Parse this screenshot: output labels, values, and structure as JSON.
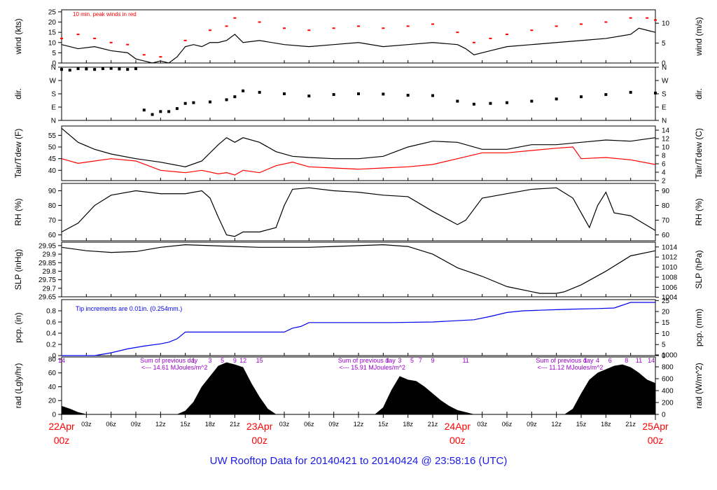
{
  "footer": {
    "title": "UW Rooftop Data for 20140421  to  20140424 @ 23:58:16  (UTC)"
  },
  "colors": {
    "axis": "#000000",
    "red": "#ff0000",
    "blue": "#0000ee",
    "purple": "#9900cc",
    "date_red": "#ff0000"
  },
  "x_axis": {
    "range_hours": [
      0,
      72
    ],
    "ticks": [
      {
        "h": 3,
        "label": "03z"
      },
      {
        "h": 6,
        "label": "06z"
      },
      {
        "h": 9,
        "label": "09z"
      },
      {
        "h": 12,
        "label": "12z"
      },
      {
        "h": 15,
        "label": "15z"
      },
      {
        "h": 18,
        "label": "18z"
      },
      {
        "h": 21,
        "label": "21z"
      },
      {
        "h": 27,
        "label": "03z"
      },
      {
        "h": 30,
        "label": "06z"
      },
      {
        "h": 33,
        "label": "09z"
      },
      {
        "h": 36,
        "label": "12z"
      },
      {
        "h": 39,
        "label": "15z"
      },
      {
        "h": 42,
        "label": "18z"
      },
      {
        "h": 45,
        "label": "21z"
      },
      {
        "h": 51,
        "label": "03z"
      },
      {
        "h": 54,
        "label": "06z"
      },
      {
        "h": 57,
        "label": "09z"
      },
      {
        "h": 60,
        "label": "12z"
      },
      {
        "h": 63,
        "label": "15z"
      },
      {
        "h": 66,
        "label": "18z"
      },
      {
        "h": 69,
        "label": "21z"
      }
    ],
    "dates": [
      {
        "h": 0,
        "label": "22Apr",
        "sub": "00z"
      },
      {
        "h": 24,
        "label": "23Apr",
        "sub": "00z"
      },
      {
        "h": 48,
        "label": "24Apr",
        "sub": "00z"
      },
      {
        "h": 72,
        "label": "25Apr",
        "sub": "00z"
      }
    ]
  },
  "chart_data": [
    {
      "type": "line",
      "id": "wind",
      "ylabel_left": "wind (kts)",
      "ylabel_right": "wind (m/s)",
      "ylim": [
        0,
        26
      ],
      "yticks_left": [
        0,
        5,
        10,
        15,
        20,
        25
      ],
      "yticks_right": [
        {
          "label": "0",
          "v": 0
        },
        {
          "label": "5",
          "v": 9.72
        },
        {
          "label": "10",
          "v": 19.44
        }
      ],
      "annotation": "10 min. peak winds in red",
      "series": [
        {
          "name": "wind speed",
          "color": "#000000",
          "x": [
            0,
            2,
            4,
            6,
            8,
            9,
            10,
            11,
            12,
            13,
            14,
            15,
            16,
            17,
            18,
            19,
            20,
            21,
            22,
            24,
            27,
            30,
            33,
            36,
            39,
            42,
            45,
            48,
            49,
            50,
            52,
            54,
            57,
            60,
            63,
            66,
            69,
            70,
            71,
            72
          ],
          "y": [
            9,
            7,
            8,
            6,
            5,
            2,
            1,
            0,
            1,
            0,
            3,
            8,
            9,
            8,
            10,
            10,
            11,
            14,
            10,
            11,
            9,
            8,
            9,
            10,
            8,
            9,
            10,
            9,
            7,
            4,
            6,
            8,
            9,
            10,
            11,
            12,
            14,
            17,
            16,
            15
          ]
        },
        {
          "name": "10 min. peak winds",
          "color": "#ff0000",
          "x": [
            0,
            2,
            4,
            6,
            8,
            10,
            12,
            15,
            18,
            20,
            21,
            24,
            27,
            30,
            33,
            36,
            39,
            42,
            45,
            48,
            50,
            52,
            54,
            57,
            60,
            63,
            66,
            69,
            71,
            72
          ],
          "y": [
            12,
            14,
            12,
            10,
            9,
            4,
            3,
            11,
            16,
            18,
            22,
            20,
            17,
            16,
            17,
            18,
            17,
            18,
            19,
            15,
            10,
            12,
            14,
            16,
            18,
            19,
            20,
            22,
            22,
            21
          ]
        }
      ]
    },
    {
      "type": "scatter",
      "id": "dir",
      "ylabel_left": "dir.",
      "ylabel_right": "dir.",
      "ylim": [
        0,
        360
      ],
      "yticks_left": [
        {
          "label": "N",
          "v": 0
        },
        {
          "label": "E",
          "v": 90
        },
        {
          "label": "S",
          "v": 180
        },
        {
          "label": "W",
          "v": 270
        },
        {
          "label": "N",
          "v": 360
        }
      ],
      "series": [
        {
          "name": "wind direction",
          "color": "#000000",
          "x": [
            0,
            1,
            2,
            3,
            4,
            5,
            6,
            7,
            8,
            9,
            10,
            11,
            12,
            13,
            14,
            15,
            16,
            18,
            20,
            21,
            22,
            24,
            27,
            30,
            33,
            36,
            39,
            42,
            45,
            48,
            50,
            52,
            54,
            57,
            60,
            63,
            66,
            69,
            72
          ],
          "y": [
            345,
            340,
            350,
            348,
            345,
            350,
            352,
            348,
            345,
            350,
            70,
            40,
            60,
            60,
            80,
            115,
            120,
            125,
            140,
            160,
            200,
            190,
            180,
            165,
            175,
            180,
            178,
            170,
            168,
            130,
            110,
            115,
            120,
            130,
            145,
            160,
            175,
            190,
            185
          ]
        }
      ]
    },
    {
      "type": "line",
      "id": "temp",
      "ylabel_left": "Tair/Tdew (F)",
      "ylabel_right": "Tair/Tdew (C)",
      "ylim": [
        35.6,
        59
      ],
      "yticks_left": [
        40,
        45,
        50,
        55
      ],
      "yticks_right": [
        {
          "label": "2",
          "v": 35.6
        },
        {
          "label": "4",
          "v": 39.2
        },
        {
          "label": "6",
          "v": 42.8
        },
        {
          "label": "8",
          "v": 46.4
        },
        {
          "label": "10",
          "v": 50
        },
        {
          "label": "12",
          "v": 53.6
        },
        {
          "label": "14",
          "v": 57.2
        }
      ],
      "series": [
        {
          "name": "Tair",
          "color": "#000000",
          "x": [
            0,
            2,
            4,
            6,
            9,
            12,
            15,
            17,
            19,
            20,
            21,
            22,
            24,
            26,
            28,
            30,
            33,
            36,
            39,
            42,
            45,
            48,
            51,
            54,
            57,
            60,
            63,
            66,
            69,
            72
          ],
          "y": [
            58,
            52,
            49,
            47,
            45,
            43.5,
            41.5,
            44,
            51,
            54,
            52,
            54,
            52,
            48,
            46,
            45.5,
            45,
            45,
            46,
            50,
            52.5,
            52,
            49,
            49,
            51,
            51,
            52,
            53,
            52.5,
            54
          ]
        },
        {
          "name": "Tdew",
          "color": "#ff0000",
          "x": [
            0,
            2,
            4,
            6,
            9,
            12,
            15,
            17,
            19,
            20,
            21,
            22,
            24,
            26,
            28,
            30,
            33,
            36,
            39,
            42,
            45,
            48,
            51,
            54,
            57,
            60,
            62,
            63,
            66,
            69,
            72
          ],
          "y": [
            45,
            43,
            44,
            45,
            44,
            40,
            39,
            40,
            38.5,
            39,
            38,
            40,
            39,
            42,
            43.5,
            41.5,
            41,
            40.5,
            41,
            41.5,
            42.5,
            45,
            47.5,
            47.5,
            48.5,
            49.5,
            50,
            45,
            45.5,
            44.5,
            42.5
          ]
        }
      ]
    },
    {
      "type": "line",
      "id": "rh",
      "ylabel_left": "RH (%)",
      "ylabel_right": "RH (%)",
      "ylim": [
        56,
        95
      ],
      "yticks_left": [
        60,
        70,
        80,
        90
      ],
      "yticks_right": [
        {
          "label": "60",
          "v": 60
        },
        {
          "label": "70",
          "v": 70
        },
        {
          "label": "80",
          "v": 80
        },
        {
          "label": "90",
          "v": 90
        }
      ],
      "series": [
        {
          "name": "relative humidity",
          "color": "#000000",
          "x": [
            0,
            2,
            4,
            6,
            9,
            12,
            15,
            17,
            18,
            19,
            20,
            21,
            22,
            24,
            26,
            27,
            28,
            30,
            33,
            36,
            39,
            42,
            45,
            47,
            48,
            49,
            51,
            54,
            57,
            60,
            62,
            63,
            64,
            65,
            66,
            67,
            69,
            72
          ],
          "y": [
            62,
            68,
            80,
            87,
            90,
            88,
            88,
            90,
            85,
            72,
            60,
            59,
            62,
            62,
            65,
            80,
            91,
            92,
            90,
            89,
            87,
            86,
            76,
            70,
            67,
            70,
            85,
            88,
            91,
            92,
            85,
            75,
            65,
            80,
            89,
            75,
            73,
            63
          ]
        }
      ]
    },
    {
      "type": "line",
      "id": "slp",
      "ylabel_left": "SLP (inHg)",
      "ylabel_right": "SLP (hPa)",
      "ylim": [
        29.65,
        29.97
      ],
      "yticks_left": [
        29.65,
        29.7,
        29.75,
        29.8,
        29.85,
        29.9,
        29.95
      ],
      "yticks_right": [
        {
          "label": "1004",
          "v": 29.647
        },
        {
          "label": "1006",
          "v": 29.706
        },
        {
          "label": "1008",
          "v": 29.765
        },
        {
          "label": "1010",
          "v": 29.824
        },
        {
          "label": "1012",
          "v": 29.883
        },
        {
          "label": "1014",
          "v": 29.942
        }
      ],
      "series": [
        {
          "name": "sea level pressure",
          "color": "#000000",
          "x": [
            0,
            3,
            6,
            9,
            12,
            15,
            18,
            21,
            24,
            27,
            30,
            33,
            36,
            39,
            42,
            45,
            48,
            51,
            54,
            57,
            58,
            59,
            60,
            61,
            63,
            66,
            69,
            72
          ],
          "y": [
            29.94,
            29.92,
            29.91,
            29.915,
            29.94,
            29.955,
            29.95,
            29.945,
            29.94,
            29.94,
            29.94,
            29.945,
            29.95,
            29.955,
            29.945,
            29.9,
            29.82,
            29.77,
            29.71,
            29.68,
            29.67,
            29.67,
            29.67,
            29.68,
            29.72,
            29.8,
            29.89,
            29.92
          ]
        }
      ]
    },
    {
      "type": "line",
      "id": "pcp",
      "ylabel_left": "pcp. (in)",
      "ylabel_right": "pcp. (mm)",
      "ylim": [
        0,
        1.0
      ],
      "yticks_left": [
        {
          "label": "0",
          "v": 0
        },
        {
          "label": "0.2",
          "v": 0.2
        },
        {
          "label": "0.4",
          "v": 0.4
        },
        {
          "label": "0.6",
          "v": 0.6
        },
        {
          "label": "0.8",
          "v": 0.8
        }
      ],
      "yticks_right": [
        {
          "label": "0",
          "v": 0
        },
        {
          "label": "5",
          "v": 0.197
        },
        {
          "label": "10",
          "v": 0.394
        },
        {
          "label": "15",
          "v": 0.591
        },
        {
          "label": "20",
          "v": 0.787
        },
        {
          "label": "25",
          "v": 0.984
        }
      ],
      "annotation": "Tip increments are 0.01in. (0.254mm.)",
      "series": [
        {
          "name": "precipitation",
          "color": "#0000ee",
          "x": [
            0,
            4,
            6,
            8,
            10,
            12,
            13,
            14,
            15,
            24,
            27,
            28,
            29,
            30,
            35,
            40,
            45,
            50,
            52,
            54,
            56,
            58,
            60,
            62,
            65,
            67,
            68,
            69,
            72
          ],
          "y": [
            0,
            0,
            0.05,
            0.12,
            0.17,
            0.21,
            0.24,
            0.3,
            0.42,
            0.42,
            0.42,
            0.49,
            0.52,
            0.59,
            0.59,
            0.59,
            0.6,
            0.64,
            0.7,
            0.77,
            0.8,
            0.81,
            0.82,
            0.83,
            0.84,
            0.85,
            0.9,
            0.95,
            0.95
          ]
        }
      ]
    },
    {
      "type": "area",
      "id": "rad",
      "ylabel_left": "rad (Lgly/hr)",
      "ylabel_right": "rad (W/m^2)",
      "ylim": [
        0,
        83
      ],
      "yticks_left": [
        0,
        20,
        40,
        60,
        80
      ],
      "yticks_right": [
        {
          "label": "0",
          "v": 0
        },
        {
          "label": "200",
          "v": 17.2
        },
        {
          "label": "400",
          "v": 34.4
        },
        {
          "label": "600",
          "v": 51.6
        },
        {
          "label": "800",
          "v": 68.8
        },
        {
          "label": "1000",
          "v": 86
        }
      ],
      "annotations": [
        {
          "h": 13,
          "label": "Sum of previous day"
        },
        {
          "h": 13,
          "label": "<--- 14.61 MJoules/m^2"
        },
        {
          "h": 37,
          "label": "Sum of previous day"
        },
        {
          "h": 37,
          "label": "<--- 15.91 MJoules/m^2"
        },
        {
          "h": 61,
          "label": "Sum of previous day"
        },
        {
          "h": 61,
          "label": "<--- 11.12 MJoules/m^2"
        }
      ],
      "hour_marks": [
        {
          "h": 0,
          "label": "14"
        },
        {
          "h": 16,
          "label": "1"
        },
        {
          "h": 18,
          "label": "3"
        },
        {
          "h": 19.5,
          "label": "5"
        },
        {
          "h": 21,
          "label": "9"
        },
        {
          "h": 22,
          "label": "12"
        },
        {
          "h": 24,
          "label": "15"
        },
        {
          "h": 39.5,
          "label": "1"
        },
        {
          "h": 41,
          "label": "3"
        },
        {
          "h": 42.5,
          "label": "5"
        },
        {
          "h": 43.5,
          "label": "7"
        },
        {
          "h": 45,
          "label": "9"
        },
        {
          "h": 49,
          "label": "11"
        },
        {
          "h": 63.5,
          "label": "1"
        },
        {
          "h": 65,
          "label": "4"
        },
        {
          "h": 66.5,
          "label": "6"
        },
        {
          "h": 68.5,
          "label": "8"
        },
        {
          "h": 70,
          "label": "11"
        },
        {
          "h": 71.5,
          "label": "14"
        }
      ],
      "series": [
        {
          "name": "solar radiation",
          "color": "#000000",
          "x": [
            0,
            1,
            2,
            3,
            14,
            15,
            16,
            17,
            18,
            19,
            20,
            21,
            22,
            23,
            24,
            25,
            26,
            38,
            39,
            40,
            41,
            42,
            43,
            44,
            45,
            46,
            47,
            48,
            49,
            50,
            61,
            62,
            63,
            64,
            65,
            66,
            67,
            68,
            69,
            70,
            71,
            72
          ],
          "y": [
            12,
            8,
            3,
            0,
            0,
            5,
            18,
            40,
            55,
            70,
            75,
            72,
            68,
            45,
            25,
            8,
            0,
            0,
            10,
            35,
            55,
            50,
            48,
            40,
            30,
            20,
            12,
            6,
            3,
            0,
            0,
            8,
            30,
            50,
            60,
            65,
            70,
            72,
            68,
            60,
            50,
            45
          ]
        }
      ]
    }
  ]
}
